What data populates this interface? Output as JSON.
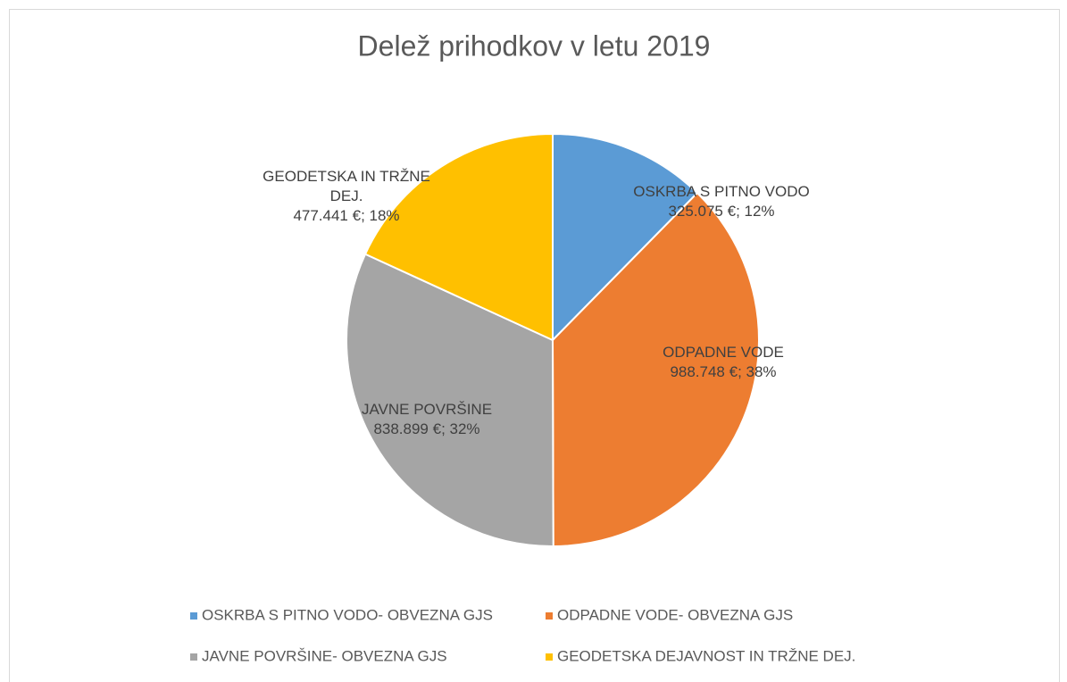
{
  "chart_data": {
    "type": "pie",
    "title": "Delež prihodkov v letu 2019",
    "categories": [
      "OSKRBA S PITNO VODO- OBVEZNA GJS",
      "ODPADNE VODE- OBVEZNA GJS",
      "JAVNE POVRŠINE- OBVEZNA GJS",
      "GEODETSKA DEJAVNOST IN TRŽNE DEJ."
    ],
    "data_label_names": [
      "OSKRBA S PITNO VODO",
      "ODPADNE VODE",
      "JAVNE POVRŠINE",
      "GEODETSKA IN TRŽNE DEJ."
    ],
    "values": [
      325075,
      988748,
      838899,
      477441
    ],
    "value_labels": [
      "325.075 €; 12%",
      "988.748 €; 38%",
      "838.899 €; 32%",
      "477.441 €; 18%"
    ],
    "colors": [
      "#5b9bd5",
      "#ed7d31",
      "#a5a5a5",
      "#ffc000"
    ],
    "legend": "bottom"
  }
}
